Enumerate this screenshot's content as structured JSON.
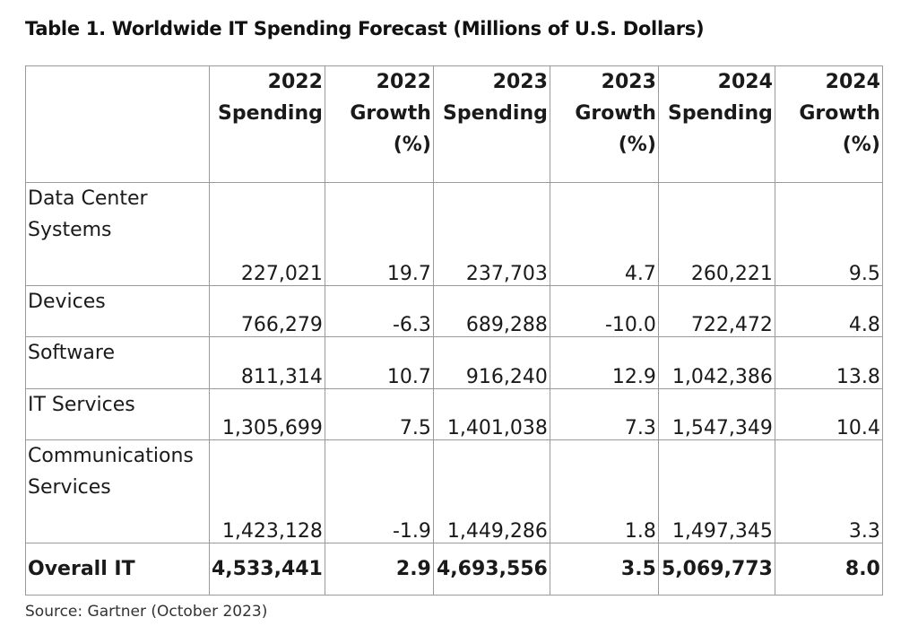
{
  "title": "Table 1. Worldwide IT Spending Forecast (Millions of U.S. Dollars)",
  "columns": [
    {
      "line1": "2022",
      "line2": "Spending",
      "line3": ""
    },
    {
      "line1": "2022",
      "line2": "Growth",
      "line3": "(%)"
    },
    {
      "line1": "2023",
      "line2": "Spending",
      "line3": ""
    },
    {
      "line1": "2023",
      "line2": "Growth",
      "line3": "(%)"
    },
    {
      "line1": "2024",
      "line2": "Spending",
      "line3": ""
    },
    {
      "line1": "2024",
      "line2": "Growth",
      "line3": "(%)"
    }
  ],
  "rows": [
    {
      "label1": "Data Center",
      "label2": "Systems",
      "values": [
        "227,021",
        "19.7",
        "237,703",
        "4.7",
        "260,221",
        "9.5"
      ]
    },
    {
      "label1": "Devices",
      "label2": "",
      "values": [
        "766,279",
        "-6.3",
        "689,288",
        "-10.0",
        "722,472",
        "4.8"
      ]
    },
    {
      "label1": "Software",
      "label2": "",
      "values": [
        "811,314",
        "10.7",
        "916,240",
        "12.9",
        "1,042,386",
        "13.8"
      ]
    },
    {
      "label1": "IT Services",
      "label2": "",
      "values": [
        "1,305,699",
        "7.5",
        "1,401,038",
        "7.3",
        "1,547,349",
        "10.4"
      ]
    },
    {
      "label1": "Communications",
      "label2": "Services",
      "values": [
        "1,423,128",
        "-1.9",
        "1,449,286",
        "1.8",
        "1,497,345",
        "3.3"
      ]
    }
  ],
  "total": {
    "label": "Overall IT",
    "values": [
      "4,533,441",
      "2.9",
      "4,693,556",
      "3.5",
      "5,069,773",
      "8.0"
    ]
  },
  "source": "Source: Gartner (October 2023)"
}
